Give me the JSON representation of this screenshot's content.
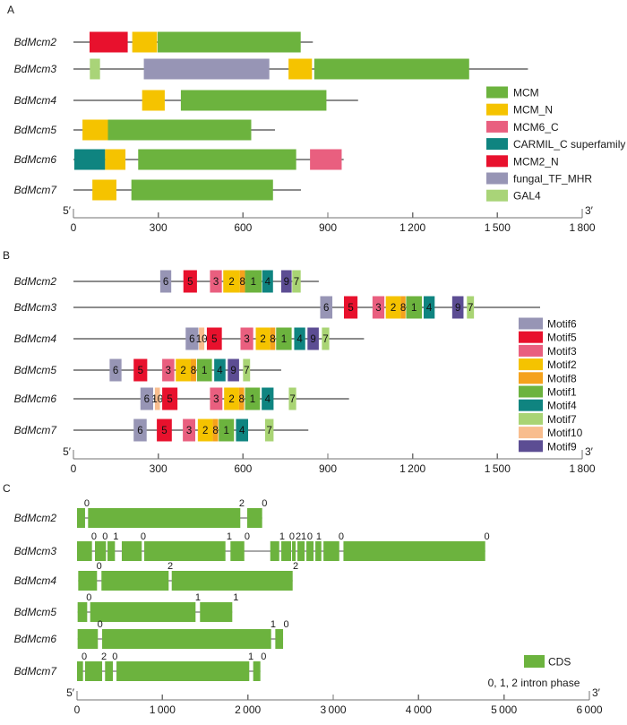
{
  "chart_data": [
    {
      "panel_label": "A",
      "type": "domain_diagram",
      "x_axis": {
        "min": 0,
        "max": 1800,
        "ticks": [
          0,
          300,
          600,
          900,
          1200,
          1500,
          1800
        ],
        "tick_labels": [
          "0",
          "300",
          "600",
          "900",
          "1 200",
          "1 500",
          "1 800"
        ],
        "left_end_label": "5′",
        "right_end_label": "3′"
      },
      "domain_colors": {
        "MCM": "#6cb33e",
        "MCM_N": "#f5c300",
        "MCM6_C": "#e95f7f",
        "CARMIL_C superfamily": "#0f8480",
        "MCM2_N": "#e8112d",
        "fungal_TF_MHR": "#9795b5",
        "GAL4": "#a9d478"
      },
      "rows": [
        {
          "name": "BdMcm2",
          "length": 847,
          "domains": [
            {
              "type": "MCM2_N",
              "start": 57,
              "end": 192
            },
            {
              "type": "MCM_N",
              "start": 208,
              "end": 296
            },
            {
              "type": "MCM",
              "start": 298,
              "end": 804
            }
          ]
        },
        {
          "name": "BdMcm3",
          "length": 1608,
          "domains": [
            {
              "type": "GAL4",
              "start": 58,
              "end": 94
            },
            {
              "type": "fungal_TF_MHR",
              "start": 249,
              "end": 693
            },
            {
              "type": "MCM_N",
              "start": 761,
              "end": 844
            },
            {
              "type": "MCM",
              "start": 852,
              "end": 1400
            }
          ]
        },
        {
          "name": "BdMcm4",
          "length": 1007,
          "domains": [
            {
              "type": "MCM_N",
              "start": 243,
              "end": 323
            },
            {
              "type": "MCM",
              "start": 380,
              "end": 895
            }
          ]
        },
        {
          "name": "BdMcm5",
          "length": 713,
          "domains": [
            {
              "type": "MCM_N",
              "start": 32,
              "end": 122
            },
            {
              "type": "MCM",
              "start": 122,
              "end": 629
            }
          ]
        },
        {
          "name": "BdMcm6",
          "length": 956,
          "domains": [
            {
              "type": "CARMIL_C superfamily",
              "start": 3,
              "end": 112
            },
            {
              "type": "MCM_N",
              "start": 112,
              "end": 184
            },
            {
              "type": "MCM",
              "start": 229,
              "end": 788
            },
            {
              "type": "MCM6_C",
              "start": 837,
              "end": 949
            }
          ]
        },
        {
          "name": "BdMcm7",
          "length": 805,
          "domains": [
            {
              "type": "MCM_N",
              "start": 67,
              "end": 152
            },
            {
              "type": "MCM",
              "start": 205,
              "end": 706
            }
          ]
        }
      ],
      "legend": [
        {
          "label": "MCM",
          "color": "#6cb33e"
        },
        {
          "label": "MCM_N",
          "color": "#f5c300"
        },
        {
          "label": "MCM6_C",
          "color": "#e95f7f"
        },
        {
          "label": "CARMIL_C superfamily",
          "color": "#0f8480"
        },
        {
          "label": "MCM2_N",
          "color": "#e8112d"
        },
        {
          "label": "fungal_TF_MHR",
          "color": "#9795b5"
        },
        {
          "label": "GAL4",
          "color": "#a9d478"
        }
      ]
    },
    {
      "panel_label": "B",
      "type": "motif_diagram",
      "x_axis": {
        "min": 0,
        "max": 1800,
        "ticks": [
          0,
          300,
          600,
          900,
          1200,
          1500,
          1800
        ],
        "tick_labels": [
          "0",
          "300",
          "600",
          "900",
          "1 200",
          "1 500",
          "1 800"
        ],
        "left_end_label": "5′",
        "right_end_label": "3′"
      },
      "motif_colors": {
        "1": "#6cb33e",
        "2": "#f5c300",
        "3": "#e95f7f",
        "4": "#0f8480",
        "5": "#e8112d",
        "6": "#9795b5",
        "7": "#a9d474",
        "8": "#f5a21c",
        "9": "#5c4d93",
        "10": "#f8bd8e"
      },
      "rows": [
        {
          "name": "BdMcm2",
          "length": 868,
          "motifs": [
            [
              6,
              307,
              346
            ],
            [
              5,
              389,
              437
            ],
            [
              3,
              483,
              525
            ],
            [
              2,
              530,
              589
            ],
            [
              8,
              589,
              607
            ],
            [
              1,
              607,
              666
            ],
            [
              4,
              668,
              706
            ],
            [
              9,
              735,
              772
            ],
            [
              7,
              774,
              804
            ]
          ]
        },
        {
          "name": "BdMcm3",
          "length": 1651,
          "motifs": [
            [
              6,
              873,
              916
            ],
            [
              5,
              957,
              1005
            ],
            [
              3,
              1058,
              1100
            ],
            [
              2,
              1105,
              1158
            ],
            [
              8,
              1158,
              1175
            ],
            [
              1,
              1177,
              1233
            ],
            [
              4,
              1239,
              1278
            ],
            [
              9,
              1340,
              1380
            ],
            [
              7,
              1392,
              1417
            ]
          ]
        },
        {
          "name": "BdMcm4",
          "length": 1028,
          "motifs": [
            [
              6,
              397,
              442
            ],
            [
              10,
              444,
              463
            ],
            [
              5,
              472,
              525
            ],
            [
              3,
              591,
              636
            ],
            [
              2,
              645,
              696
            ],
            [
              8,
              696,
              714
            ],
            [
              1,
              717,
              772
            ],
            [
              4,
              781,
              820
            ],
            [
              9,
              828,
              868
            ],
            [
              7,
              879,
              905
            ]
          ]
        },
        {
          "name": "BdMcm5",
          "length": 735,
          "motifs": [
            [
              6,
              128,
              170
            ],
            [
              5,
              213,
              261
            ],
            [
              3,
              314,
              357
            ],
            [
              2,
              362,
              415
            ],
            [
              8,
              415,
              434
            ],
            [
              1,
              437,
              490
            ],
            [
              4,
              498,
              538
            ],
            [
              9,
              546,
              586
            ],
            [
              7,
              600,
              625
            ]
          ]
        },
        {
          "name": "BdMcm6",
          "length": 975,
          "motifs": [
            [
              6,
              237,
              282
            ],
            [
              10,
              288,
              306
            ],
            [
              5,
              314,
              368
            ],
            [
              3,
              483,
              527
            ],
            [
              2,
              533,
              586
            ],
            [
              8,
              586,
              604
            ],
            [
              1,
              607,
              660
            ],
            [
              4,
              666,
              708
            ],
            [
              7,
              762,
              788
            ]
          ]
        },
        {
          "name": "BdMcm7",
          "length": 831,
          "motifs": [
            [
              6,
              213,
              259
            ],
            [
              5,
              295,
              348
            ],
            [
              3,
              387,
              431
            ],
            [
              2,
              440,
              493
            ],
            [
              8,
              493,
              512
            ],
            [
              1,
              514,
              568
            ],
            [
              4,
              575,
              618
            ],
            [
              7,
              678,
              708
            ]
          ]
        }
      ],
      "legend": [
        {
          "label": "Motif6",
          "color": "#9795b5"
        },
        {
          "label": "Motif5",
          "color": "#e8112d"
        },
        {
          "label": "Motif3",
          "color": "#e95f7f"
        },
        {
          "label": "Motif2",
          "color": "#f5c300"
        },
        {
          "label": "Motif8",
          "color": "#f5a21c"
        },
        {
          "label": "Motif1",
          "color": "#6cb33e"
        },
        {
          "label": "Motif4",
          "color": "#0f8480"
        },
        {
          "label": "Motif7",
          "color": "#a9d474"
        },
        {
          "label": "Motif10",
          "color": "#f8bd8e"
        },
        {
          "label": "Motif9",
          "color": "#5c4d93"
        }
      ]
    },
    {
      "panel_label": "C",
      "type": "gene_structure",
      "x_axis": {
        "min": 0,
        "max": 6000,
        "ticks": [
          0,
          1000,
          2000,
          3000,
          4000,
          5000,
          6000
        ],
        "tick_labels": [
          "0",
          "1 000",
          "2 000",
          "3 000",
          "4 000",
          "5 000",
          "6 000"
        ],
        "left_end_label": "5′",
        "right_end_label": "3′"
      },
      "cds_color": "#6cb33e",
      "note": "0, 1, 2 intron phase",
      "rows": [
        {
          "name": "BdMcm2",
          "exons": [
            [
              0,
              94
            ],
            [
              129,
              1912
            ],
            [
              1993,
              2168
            ]
          ],
          "intron_phases": [
            {
              "at": 115,
              "phase": "0"
            },
            {
              "at": 1930,
              "phase": "2"
            },
            {
              "at": 2195,
              "phase": "0"
            }
          ]
        },
        {
          "name": "BdMcm3",
          "exons": [
            [
              0,
              175
            ],
            [
              210,
              339
            ],
            [
              357,
              444
            ],
            [
              524,
              758
            ],
            [
              787,
              1738
            ],
            [
              1797,
              1959
            ],
            [
              2263,
              2368
            ],
            [
              2392,
              2507
            ],
            [
              2518,
              2560
            ],
            [
              2581,
              2665
            ],
            [
              2686,
              2770
            ],
            [
              2791,
              2861
            ],
            [
              2886,
              3071
            ],
            [
              3120,
              4780
            ]
          ],
          "intron_phases": [
            {
              "at": 199,
              "phase": "0"
            },
            {
              "at": 328,
              "phase": "0"
            },
            {
              "at": 454,
              "phase": "1"
            },
            {
              "at": 776,
              "phase": "0"
            },
            {
              "at": 1783,
              "phase": "1"
            },
            {
              "at": 1993,
              "phase": "0"
            },
            {
              "at": 2402,
              "phase": "1"
            },
            {
              "at": 2517,
              "phase": "0"
            },
            {
              "at": 2591,
              "phase": "2"
            },
            {
              "at": 2654,
              "phase": "1"
            },
            {
              "at": 2727,
              "phase": "0"
            },
            {
              "at": 2832,
              "phase": "1"
            },
            {
              "at": 3094,
              "phase": "0"
            },
            {
              "at": 4800,
              "phase": "0"
            }
          ]
        },
        {
          "name": "BdMcm4",
          "exons": [
            [
              14,
              234
            ],
            [
              286,
              1073
            ],
            [
              1109,
              2525
            ]
          ],
          "intron_phases": [
            {
              "at": 259,
              "phase": "0"
            },
            {
              "at": 1091,
              "phase": "2"
            },
            {
              "at": 2560,
              "phase": "2"
            }
          ]
        },
        {
          "name": "BdMcm5",
          "exons": [
            [
              7,
              119
            ],
            [
              154,
              1388
            ],
            [
              1440,
              1818
            ]
          ],
          "intron_phases": [
            {
              "at": 140,
              "phase": "0"
            },
            {
              "at": 1416,
              "phase": "1"
            },
            {
              "at": 1860,
              "phase": "1"
            }
          ]
        },
        {
          "name": "BdMcm6",
          "exons": [
            [
              7,
              244
            ],
            [
              294,
              2273
            ],
            [
              2322,
              2413
            ]
          ],
          "intron_phases": [
            {
              "at": 270,
              "phase": "0"
            },
            {
              "at": 2297,
              "phase": "1"
            },
            {
              "at": 2450,
              "phase": "0"
            }
          ]
        },
        {
          "name": "BdMcm7",
          "exons": [
            [
              0,
              70
            ],
            [
              94,
              294
            ],
            [
              328,
              420
            ],
            [
              462,
              2017
            ],
            [
              2063,
              2147
            ]
          ],
          "intron_phases": [
            {
              "at": 84,
              "phase": "0"
            },
            {
              "at": 315,
              "phase": "2"
            },
            {
              "at": 444,
              "phase": "0"
            },
            {
              "at": 2035,
              "phase": "1"
            },
            {
              "at": 2185,
              "phase": "0"
            }
          ]
        }
      ],
      "legend": [
        {
          "label": "CDS",
          "color": "#6cb33e"
        }
      ]
    }
  ]
}
